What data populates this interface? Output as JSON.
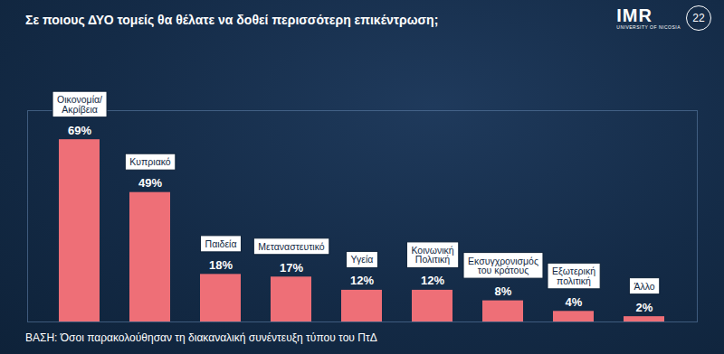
{
  "chart_data": {
    "type": "bar",
    "title": "Σε ποιους ΔΥΟ τομείς θα θέλατε να δοθεί περισσότερη επικέντρωση;",
    "caption": "ΒΑΣΗ: Όσοι παρακολούθησαν τη διακαναλική συνέντευξη τύπου του ΠτΔ",
    "annotations": [
      "IMR",
      "22",
      "UNIVERSITY OF NICOSIA"
    ],
    "categories": [
      "Οικονομία/\nΑκρίβεια",
      "Κυπριακό",
      "Παιδεία",
      "Μεταναστευτικό",
      "Υγεία",
      "Κοινωνική\nΠολιτική",
      "Εκσυγχρονισμός\nτου κράτους",
      "Εξωτερική\nπολιτική",
      "Άλλο"
    ],
    "values": [
      69,
      49,
      18,
      17,
      12,
      12,
      8,
      4,
      2
    ],
    "value_labels": [
      "69%",
      "49%",
      "18%",
      "17%",
      "12%",
      "12%",
      "8%",
      "4%",
      "2%"
    ],
    "color": "#ee6f77",
    "ylim": [
      0,
      80
    ],
    "grid": false,
    "data_labels": true,
    "tick_labels": false
  }
}
